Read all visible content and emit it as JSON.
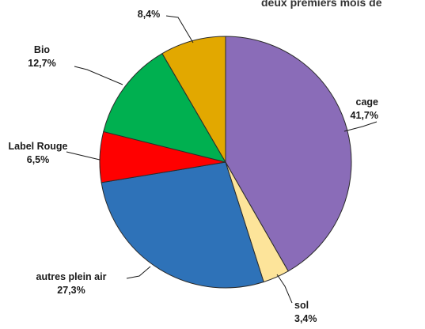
{
  "chart_data": {
    "type": "pie",
    "title": "deux premiers mois de",
    "slices": [
      {
        "key": "cage",
        "label": "cage",
        "value_label": "41,7%",
        "value": 41.7,
        "color": "#8a6cb8"
      },
      {
        "key": "sol",
        "label": "sol",
        "value_label": "3,4%",
        "value": 3.4,
        "color": "#fde49a"
      },
      {
        "key": "autres-plein-air",
        "label": "autres plein air",
        "value_label": "27,3%",
        "value": 27.3,
        "color": "#2e72b8"
      },
      {
        "key": "label-rouge",
        "label": "Label Rouge",
        "value_label": "6,5%",
        "value": 6.5,
        "color": "#ff0000"
      },
      {
        "key": "bio",
        "label": "Bio",
        "value_label": "12,7%",
        "value": 12.7,
        "color": "#00b050"
      },
      {
        "key": "other",
        "label": "",
        "value_label": "8,4%",
        "value": 8.4,
        "color": "#e2a800"
      }
    ],
    "start_angle_deg": 0,
    "direction": "clockwise",
    "legend": "none"
  }
}
